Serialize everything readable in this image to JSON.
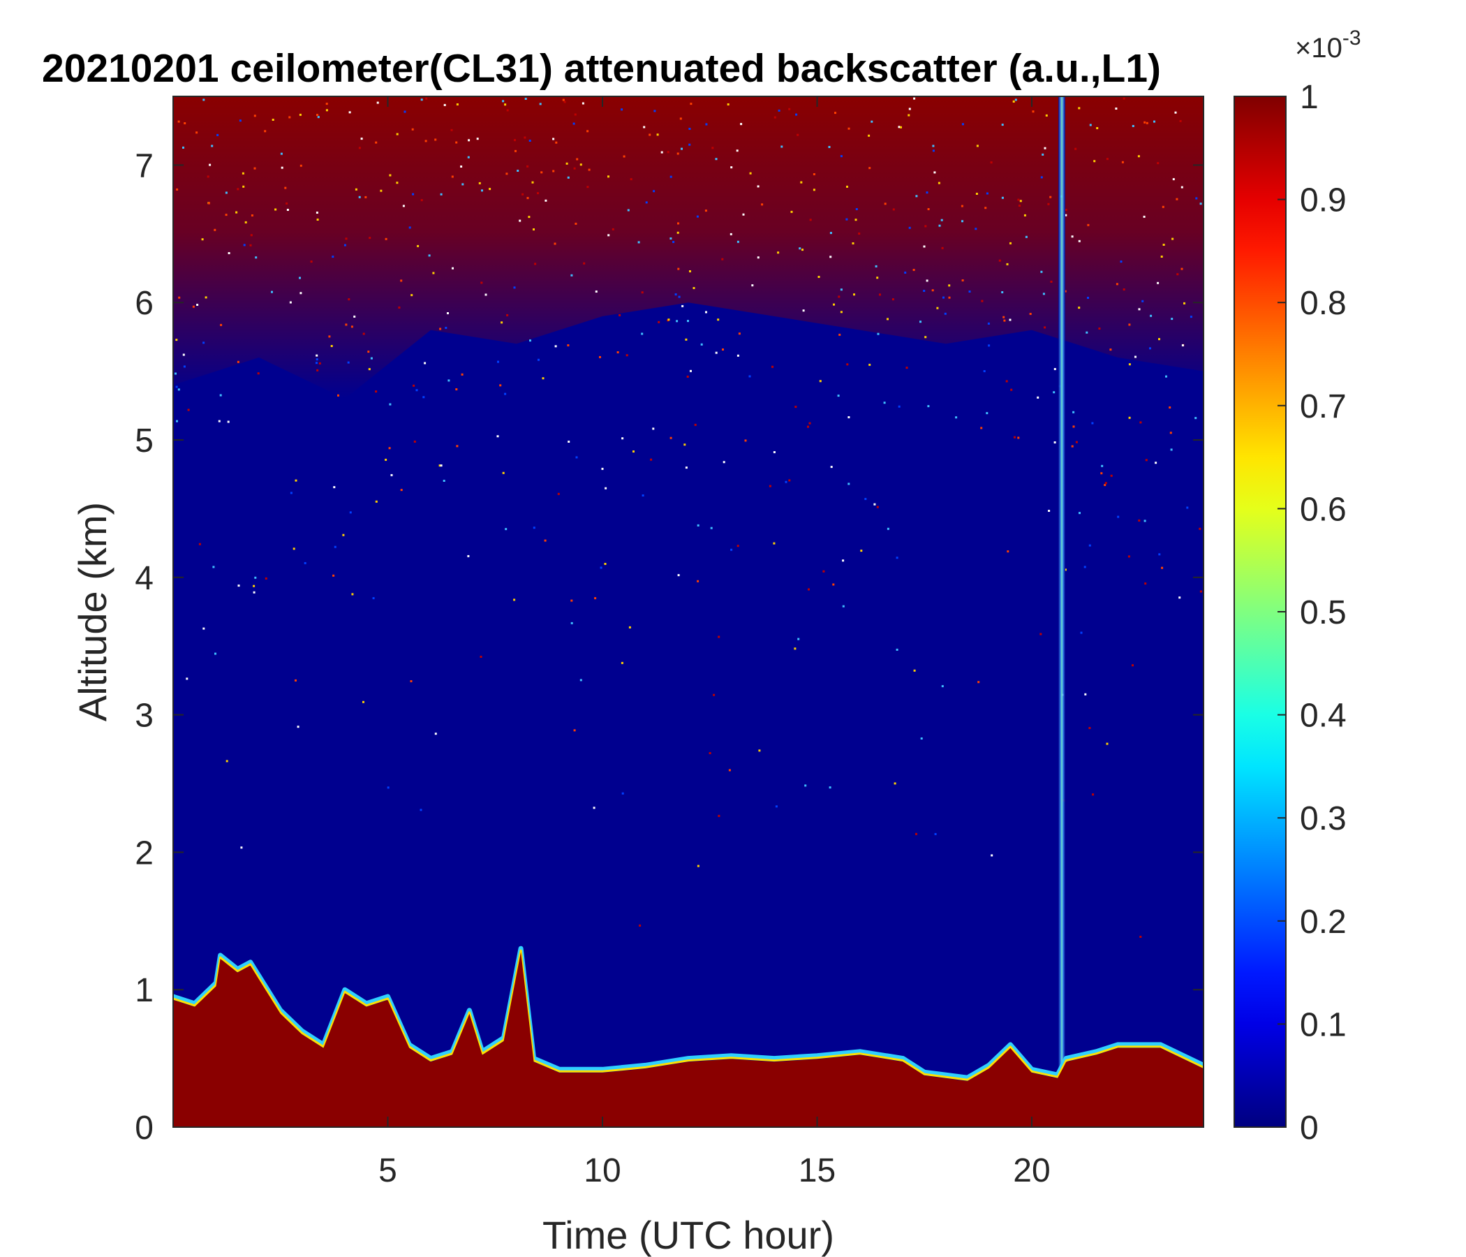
{
  "chart_data": {
    "type": "heatmap",
    "title": "20210201 ceilometer(CL31) attenuated backscatter (a.u.,L1)",
    "xlabel": "Time (UTC hour)",
    "ylabel": "Altitude (km)",
    "xlim": [
      0,
      24
    ],
    "ylim": [
      0,
      7.5
    ],
    "x_ticks": [
      5,
      10,
      15,
      20
    ],
    "y_ticks": [
      0,
      1,
      2,
      3,
      4,
      5,
      6,
      7
    ],
    "colorbar": {
      "colormap": "jet",
      "limits": [
        0,
        1
      ],
      "ticks": [
        0,
        0.1,
        0.2,
        0.3,
        0.4,
        0.5,
        0.6,
        0.7,
        0.8,
        0.9,
        1
      ],
      "tick_labels": [
        "0",
        "0.1",
        "0.2",
        "0.3",
        "0.4",
        "0.5",
        "0.6",
        "0.7",
        "0.8",
        "0.9",
        "1"
      ],
      "exponent_label": "×10",
      "exponent_power": "-3"
    },
    "features": {
      "boundary_layer_top_km": [
        [
          0,
          0.95
        ],
        [
          0.5,
          0.9
        ],
        [
          1,
          1.05
        ],
        [
          1.1,
          1.25
        ],
        [
          1.5,
          1.15
        ],
        [
          1.8,
          1.2
        ],
        [
          2,
          1.1
        ],
        [
          2.5,
          0.85
        ],
        [
          3,
          0.7
        ],
        [
          3.5,
          0.6
        ],
        [
          4,
          1.0
        ],
        [
          4.5,
          0.9
        ],
        [
          5,
          0.95
        ],
        [
          5.5,
          0.6
        ],
        [
          6,
          0.5
        ],
        [
          6.5,
          0.55
        ],
        [
          6.9,
          0.85
        ],
        [
          7.2,
          0.55
        ],
        [
          7.7,
          0.65
        ],
        [
          8.1,
          1.3
        ],
        [
          8.4,
          0.5
        ],
        [
          9,
          0.42
        ],
        [
          10,
          0.42
        ],
        [
          11,
          0.45
        ],
        [
          12,
          0.5
        ],
        [
          13,
          0.52
        ],
        [
          14,
          0.5
        ],
        [
          15,
          0.52
        ],
        [
          16,
          0.55
        ],
        [
          17,
          0.5
        ],
        [
          17.5,
          0.4
        ],
        [
          18,
          0.38
        ],
        [
          18.5,
          0.36
        ],
        [
          19,
          0.45
        ],
        [
          19.5,
          0.6
        ],
        [
          20,
          0.42
        ],
        [
          20.6,
          0.38
        ],
        [
          20.8,
          0.5
        ],
        [
          21.5,
          0.55
        ],
        [
          22,
          0.6
        ],
        [
          23,
          0.6
        ],
        [
          24,
          0.45
        ]
      ],
      "noise_layer_base_km": [
        [
          0,
          5.4
        ],
        [
          2,
          5.6
        ],
        [
          4,
          5.3
        ],
        [
          6,
          5.8
        ],
        [
          8,
          5.7
        ],
        [
          10,
          5.9
        ],
        [
          12,
          6.0
        ],
        [
          14,
          5.9
        ],
        [
          16,
          5.8
        ],
        [
          18,
          5.7
        ],
        [
          20,
          5.8
        ],
        [
          22,
          5.6
        ],
        [
          24,
          5.5
        ]
      ],
      "vertical_streak_hour": 20.7
    }
  }
}
